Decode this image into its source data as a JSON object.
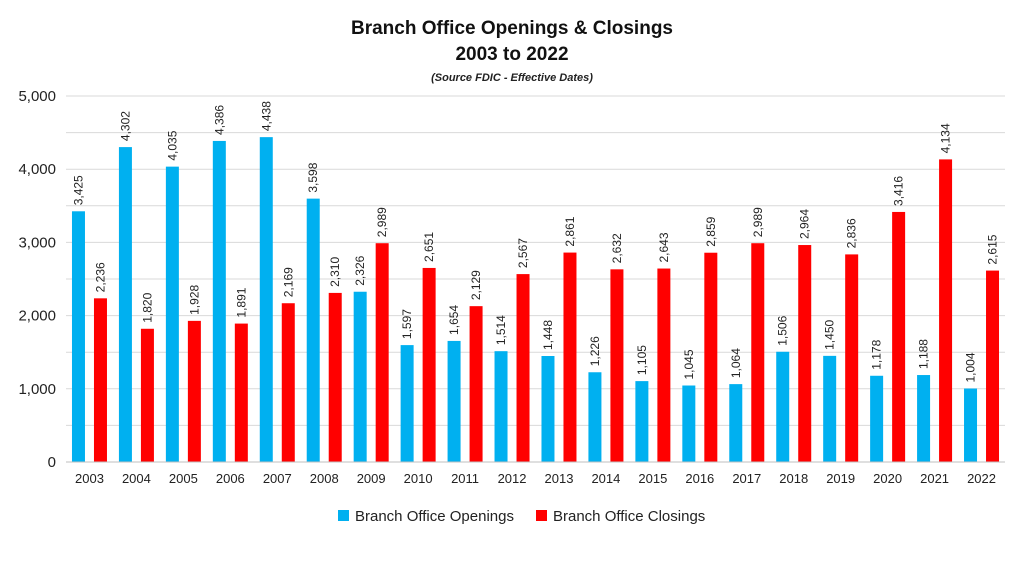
{
  "chart_data": {
    "type": "bar",
    "title": "Branch Office Openings & Closings",
    "subtitle": "2003 to 2022",
    "source": "(Source FDIC - Effective Dates)",
    "categories": [
      "2003",
      "2004",
      "2005",
      "2006",
      "2007",
      "2008",
      "2009",
      "2010",
      "2011",
      "2012",
      "2013",
      "2014",
      "2015",
      "2016",
      "2017",
      "2018",
      "2019",
      "2020",
      "2021",
      "2022"
    ],
    "series": [
      {
        "name": "Branch Office Openings",
        "color": "#00b0f0",
        "values": [
          3425,
          4302,
          4035,
          4386,
          4438,
          3598,
          2326,
          1597,
          1654,
          1514,
          1448,
          1226,
          1105,
          1045,
          1064,
          1506,
          1450,
          1178,
          1188,
          1004
        ],
        "labels": [
          "3,425",
          "4,302",
          "4,035",
          "4,386",
          "4,438",
          "3,598",
          "2,326",
          "1,597",
          "1,654",
          "1,514",
          "1,448",
          "1,226",
          "1,105",
          "1,045",
          "1,064",
          "1,506",
          "1,450",
          "1,178",
          "1,188",
          "1,004"
        ]
      },
      {
        "name": "Branch Office Closings",
        "color": "#ff0000",
        "values": [
          2236,
          1820,
          1928,
          1891,
          2169,
          2310,
          2989,
          2651,
          2129,
          2567,
          2861,
          2632,
          2643,
          2859,
          2989,
          2964,
          2836,
          3416,
          4134,
          2615
        ],
        "labels": [
          "2,236",
          "1,820",
          "1,928",
          "1,891",
          "2,169",
          "2,310",
          "2,989",
          "2,651",
          "2,129",
          "2,567",
          "2,861",
          "2,632",
          "2,643",
          "2,859",
          "2,989",
          "2,964",
          "2,836",
          "3,416",
          "4,134",
          "2,615"
        ]
      }
    ],
    "ylim": [
      0,
      5000
    ],
    "yticks": [
      0,
      1000,
      2000,
      3000,
      4000,
      5000
    ],
    "ytick_labels": [
      "0",
      "1,000",
      "2,000",
      "3,000",
      "4,000",
      "5,000"
    ],
    "grid": true,
    "legend_position": "bottom-center",
    "xlabel": "",
    "ylabel": ""
  }
}
